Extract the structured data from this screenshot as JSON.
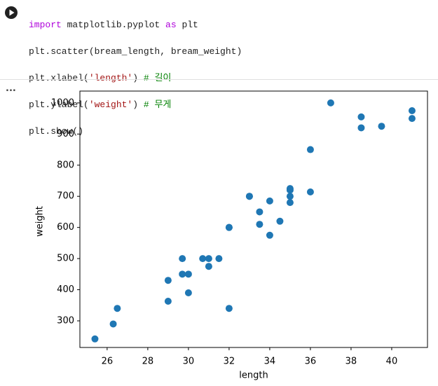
{
  "code": {
    "lines": [
      [
        "import",
        " matplotlib.pyplot ",
        "as",
        " plt"
      ],
      [
        "plt.scatter(bream_length, bream_weight)"
      ],
      [
        "plt.xlabel(",
        "'length'",
        ")",
        " # 길이"
      ],
      [
        "plt.ylabel(",
        "'weight'",
        ")",
        " # 무게"
      ],
      [
        "plt.show()"
      ]
    ]
  },
  "output_marker": "...",
  "chart_data": {
    "type": "scatter",
    "xlabel": "length",
    "ylabel": "weight",
    "color": "#1f77b4",
    "x": [
      25.4,
      26.3,
      26.5,
      29.0,
      29.0,
      29.7,
      29.7,
      30.0,
      30.0,
      30.7,
      31.0,
      31.0,
      31.5,
      32.0,
      32.0,
      32.0,
      33.0,
      33.0,
      33.5,
      33.5,
      34.0,
      34.0,
      34.5,
      35.0,
      35.0,
      35.0,
      35.0,
      36.0,
      36.0,
      37.0,
      38.5,
      38.5,
      39.5,
      41.0,
      41.0
    ],
    "values": [
      242,
      290,
      340,
      363,
      430,
      450,
      500,
      390,
      450,
      500,
      475,
      500,
      500,
      340,
      600,
      600,
      700,
      700,
      610,
      650,
      575,
      685,
      620,
      680,
      700,
      725,
      720,
      714,
      850,
      1000,
      920,
      955,
      925,
      975,
      950
    ],
    "xlim": [
      24.66,
      41.76
    ],
    "ylim": [
      214.5,
      1038
    ],
    "xticks": [
      26,
      28,
      30,
      32,
      34,
      36,
      38,
      40
    ],
    "yticks": [
      300,
      400,
      500,
      600,
      700,
      800,
      900,
      1000
    ]
  }
}
